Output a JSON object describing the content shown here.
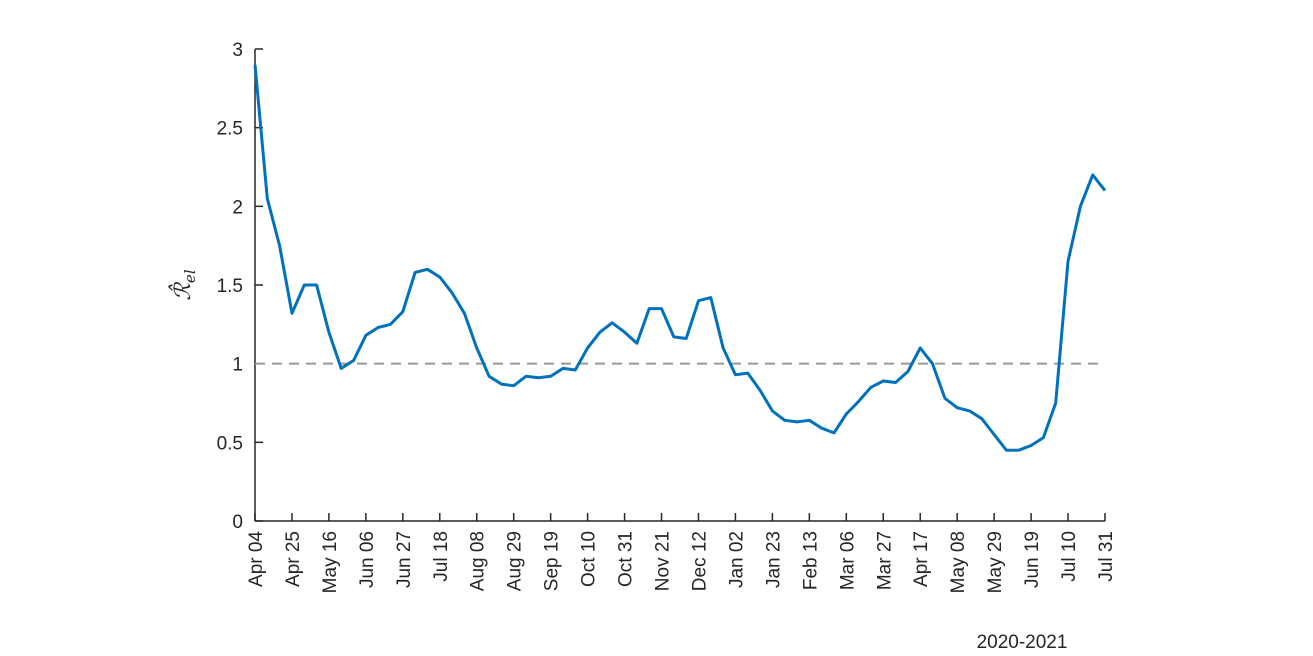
{
  "chart_data": {
    "type": "line",
    "ylabel": {
      "symbol": "ℛ̂",
      "subscript": "el"
    },
    "xlabel": "2020-2021",
    "categories": [
      "Apr 04",
      null,
      null,
      "Apr 25",
      null,
      null,
      "May 16",
      null,
      null,
      "Jun 06",
      null,
      null,
      "Jun 27",
      null,
      null,
      "Jul 18",
      null,
      null,
      "Aug 08",
      null,
      null,
      "Aug 29",
      null,
      null,
      "Sep 19",
      null,
      null,
      "Oct 10",
      null,
      null,
      "Oct 31",
      null,
      null,
      "Nov 21",
      null,
      null,
      "Dec 12",
      null,
      null,
      "Jan 02",
      null,
      null,
      "Jan 23",
      null,
      null,
      "Feb 13",
      null,
      null,
      "Mar 06",
      null,
      null,
      "Mar 27",
      null,
      null,
      "Apr 17",
      null,
      null,
      "May 08",
      null,
      null,
      "May 29",
      null,
      null,
      "Jun 19",
      null,
      null,
      "Jul 10",
      null,
      null,
      "Jul 31"
    ],
    "series": [
      {
        "color": "#0072bd",
        "values": [
          2.9,
          2.05,
          1.75,
          1.32,
          1.5,
          1.5,
          1.2,
          0.97,
          1.02,
          1.18,
          1.23,
          1.25,
          1.33,
          1.58,
          1.6,
          1.55,
          1.45,
          1.32,
          1.1,
          0.92,
          0.87,
          0.86,
          0.92,
          0.91,
          0.92,
          0.97,
          0.96,
          1.1,
          1.2,
          1.26,
          1.2,
          1.13,
          1.35,
          1.35,
          1.17,
          1.16,
          1.4,
          1.42,
          1.1,
          0.93,
          0.94,
          0.83,
          0.7,
          0.64,
          0.63,
          0.64,
          0.59,
          0.56,
          0.68,
          0.76,
          0.85,
          0.89,
          0.88,
          0.95,
          1.1,
          1.0,
          0.78,
          0.72,
          0.7,
          0.65,
          0.55,
          0.45,
          0.45,
          0.48,
          0.53,
          0.75,
          1.65,
          2.0,
          2.2,
          2.1
        ]
      }
    ],
    "reference_line": {
      "value": 1,
      "color": "#999999"
    },
    "ylim": [
      0,
      3
    ],
    "yticks": [
      0,
      0.5,
      1,
      1.5,
      2,
      2.5,
      3
    ]
  }
}
